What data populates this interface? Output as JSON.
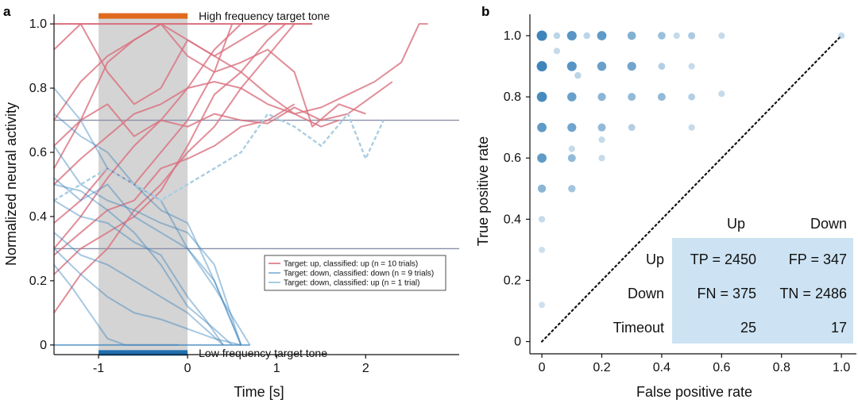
{
  "chart_data": [
    {
      "panel_label": "a",
      "type": "line",
      "xlabel": "Time [s]",
      "ylabel": "Normalized neural activity",
      "xlim": [
        -1.5,
        3.05
      ],
      "ylim": [
        -0.03,
        1.03
      ],
      "x_ticks": [
        -1,
        0,
        1,
        2
      ],
      "x_tick_labels": [
        "-1",
        "0",
        "1",
        "2"
      ],
      "y_ticks": [
        0,
        0.2,
        0.4,
        0.6,
        0.8,
        1.0
      ],
      "y_tick_labels": [
        "0",
        "0.2",
        "0.4",
        "0.6",
        "0.8",
        "1.0"
      ],
      "grid": false,
      "colors": {
        "up": "#d9707e",
        "down": "#3f86bd",
        "down_up": "#a9cde2",
        "shade": "#d4d4d4",
        "high_tone": "#e06a1e",
        "low_tone": "#1f6fb0",
        "threshold": "#8a8fa8"
      },
      "shaded_interval": [
        -1,
        0
      ],
      "thresholds": [
        0.7,
        0.3
      ],
      "tone_markers": [
        {
          "label": "High frequency target tone",
          "y": 1.0,
          "x": [
            -1,
            0
          ]
        },
        {
          "label": "Low frequency target tone",
          "y": 0.0,
          "x": [
            -1,
            0
          ]
        }
      ],
      "legend": {
        "placement": "center-right",
        "entries": [
          "Target: up, classified: up (n = 10 trials)",
          "Target: down, classified: down (n = 9 trials)",
          "Target: down, classified: up (n = 1 trial)"
        ]
      },
      "series": [
        {
          "group": "up",
          "x": [
            -1.5,
            -1.2,
            -0.9,
            -0.6,
            -0.3,
            0,
            0.3,
            0.6,
            0.9,
            1.2,
            1.4
          ],
          "y": [
            0.3,
            0.4,
            0.52,
            0.62,
            0.7,
            0.8,
            0.92,
            1.0,
            1.0,
            1.0,
            1.0
          ]
        },
        {
          "group": "up",
          "x": [
            -1.5,
            -1.2,
            -0.9,
            -0.6,
            -0.3,
            0,
            0.3,
            0.6,
            0.9,
            1.2,
            1.5,
            1.8,
            2.1,
            2.4,
            2.6,
            2.7
          ],
          "y": [
            0.5,
            0.58,
            0.65,
            0.72,
            0.75,
            0.8,
            0.82,
            0.8,
            0.75,
            0.72,
            0.74,
            0.78,
            0.82,
            0.88,
            1.0,
            1.0
          ]
        },
        {
          "group": "up",
          "x": [
            -1.5,
            -1.2,
            -0.9,
            -0.6,
            -0.3,
            0,
            0.3,
            0.6,
            0.9,
            1.1
          ],
          "y": [
            0.55,
            0.7,
            0.88,
            0.95,
            1.0,
            0.95,
            0.9,
            0.95,
            1.0,
            1.0
          ]
        },
        {
          "group": "up",
          "x": [
            -1.5,
            -1.2,
            -0.9,
            -0.6,
            -0.3,
            0,
            0.3,
            0.6,
            0.9,
            1.2,
            1.5,
            1.8,
            2.1,
            2.3
          ],
          "y": [
            0.62,
            0.7,
            0.75,
            0.65,
            0.7,
            0.68,
            0.72,
            0.7,
            0.69,
            0.74,
            0.7,
            0.72,
            0.78,
            0.82
          ]
        },
        {
          "group": "up",
          "x": [
            -1.5,
            -1.2,
            -0.9,
            -0.6,
            -0.3,
            0,
            0.3,
            0.6,
            0.9,
            1.2,
            1.4,
            1.7,
            2.0
          ],
          "y": [
            0.7,
            0.82,
            0.9,
            0.95,
            1.0,
            0.9,
            0.85,
            0.88,
            0.92,
            0.85,
            0.68,
            0.75,
            0.72
          ]
        },
        {
          "group": "up",
          "x": [
            -1.5,
            -1.2,
            -0.9,
            -0.6,
            -0.3,
            0,
            0.3,
            0.6,
            0.9,
            1.2
          ],
          "y": [
            0.1,
            0.22,
            0.3,
            0.42,
            0.5,
            0.6,
            0.68,
            0.8,
            0.9,
            1.0
          ]
        },
        {
          "group": "up",
          "x": [
            -1.5,
            -1.2,
            -0.9,
            -0.6,
            -0.3,
            0,
            0.3,
            0.6,
            0.9,
            1.1
          ],
          "y": [
            0.22,
            0.3,
            0.35,
            0.4,
            0.48,
            0.62,
            0.78,
            0.85,
            0.95,
            1.0
          ]
        },
        {
          "group": "up",
          "x": [
            -1.5,
            -1.2,
            -0.9,
            -0.6,
            -0.3,
            0,
            0.3,
            0.5
          ],
          "y": [
            0.38,
            0.45,
            0.55,
            0.5,
            0.6,
            0.7,
            0.85,
            1.0
          ]
        },
        {
          "group": "up",
          "x": [
            -1.5,
            -1.2,
            -0.9,
            -0.6,
            -0.3,
            0,
            0.3,
            0.6,
            0.9,
            1.2,
            1.5,
            1.7
          ],
          "y": [
            0.92,
            1.0,
            0.85,
            0.75,
            0.8,
            0.95,
            0.9,
            0.85,
            0.78,
            0.72,
            0.68,
            0.7
          ]
        },
        {
          "group": "up",
          "x": [
            -1.5,
            -1.2,
            -0.9,
            -0.6,
            -0.3,
            0,
            0.3,
            0.6,
            0.9,
            1.2
          ],
          "y": [
            0.28,
            0.35,
            0.42,
            0.45,
            0.55,
            0.58,
            0.62,
            0.68,
            0.7,
            0.75
          ]
        },
        {
          "group": "down",
          "x": [
            -1.5,
            -1.2,
            -0.9,
            -0.6,
            -0.3,
            0,
            0.3,
            0.5
          ],
          "y": [
            0.5,
            0.48,
            0.42,
            0.35,
            0.25,
            0.12,
            0.05,
            0.0
          ]
        },
        {
          "group": "down",
          "x": [
            -1.5,
            -1.2,
            -0.9,
            -0.6,
            -0.3,
            0,
            0.3,
            0.6
          ],
          "y": [
            0.8,
            0.7,
            0.55,
            0.5,
            0.45,
            0.3,
            0.2,
            0.0
          ]
        },
        {
          "group": "down",
          "x": [
            -1.5,
            -1.2,
            -0.9,
            -0.6,
            -0.3,
            0,
            0.2,
            0.4
          ],
          "y": [
            0.45,
            0.4,
            0.38,
            0.32,
            0.28,
            0.15,
            0.08,
            0.0
          ]
        },
        {
          "group": "down",
          "x": [
            -1.5,
            -1.2,
            -0.9,
            -0.6,
            -0.3,
            0,
            0.3,
            0.6
          ],
          "y": [
            0.3,
            0.22,
            0.15,
            0.1,
            0.08,
            0.05,
            0.02,
            0.0
          ]
        },
        {
          "group": "down",
          "x": [
            -1.5,
            -1.2,
            -0.9,
            -0.6,
            -0.3,
            0,
            0.3,
            0.7
          ],
          "y": [
            0.52,
            0.45,
            0.5,
            0.4,
            0.35,
            0.3,
            0.18,
            0.0
          ]
        },
        {
          "group": "down",
          "x": [
            -1.5,
            -1.2,
            -0.9,
            -0.6,
            -0.3,
            0,
            0.2,
            0.4
          ],
          "y": [
            0.35,
            0.28,
            0.25,
            0.2,
            0.15,
            0.1,
            0.05,
            0.0
          ]
        },
        {
          "group": "down",
          "x": [
            -1.5,
            -1.2,
            -0.9,
            -0.6,
            -0.3,
            0,
            0.3,
            0.6
          ],
          "y": [
            0.62,
            0.5,
            0.45,
            0.42,
            0.38,
            0.35,
            0.25,
            0.0
          ]
        },
        {
          "group": "down",
          "x": [
            -1.5,
            -1.3,
            -1.1,
            -0.9,
            -0.7,
            -0.5,
            -0.3,
            -0.1
          ],
          "y": [
            0.25,
            0.18,
            0.1,
            0.02,
            0.0,
            0.0,
            0.0,
            0.0
          ]
        },
        {
          "group": "down",
          "x": [
            -1.5,
            -1.2,
            -0.9,
            -0.6,
            -0.3,
            0,
            0.3,
            0.6
          ],
          "y": [
            0.72,
            0.65,
            0.6,
            0.5,
            0.42,
            0.38,
            0.2,
            0.0
          ]
        },
        {
          "group": "down_up",
          "x": [
            -1.5,
            -1.2,
            -0.9,
            -0.6,
            -0.3,
            0,
            0.3,
            0.6,
            0.9,
            1.2,
            1.5,
            1.8,
            2.0,
            2.2
          ],
          "y": [
            0.45,
            0.5,
            0.55,
            0.5,
            0.45,
            0.5,
            0.55,
            0.6,
            0.72,
            0.68,
            0.62,
            0.72,
            0.58,
            0.7
          ]
        }
      ]
    },
    {
      "panel_label": "b",
      "type": "scatter",
      "xlabel": "False positive rate",
      "ylabel": "True positive rate",
      "xlim": [
        -0.04,
        1.05
      ],
      "ylim": [
        -0.04,
        1.07
      ],
      "x_ticks": [
        0,
        0.2,
        0.4,
        0.6,
        0.8,
        1.0
      ],
      "x_tick_labels": [
        "0",
        "0.2",
        "0.4",
        "0.6",
        "0.8",
        "1.0"
      ],
      "y_ticks": [
        0,
        0.2,
        0.4,
        0.6,
        0.8,
        1.0
      ],
      "y_tick_labels": [
        "0",
        "0.2",
        "0.4",
        "0.6",
        "0.8",
        "1.0"
      ],
      "grid": false,
      "colors": {
        "points": "#2e7bb5",
        "diagonal": "#111111",
        "table_fill": "#cde3f3"
      },
      "diagonal": {
        "from": [
          0,
          0
        ],
        "to": [
          1,
          1
        ],
        "style": "dotted"
      },
      "points": [
        {
          "x": 0,
          "y": 1.0,
          "w": 1.0
        },
        {
          "x": 0.1,
          "y": 1.0,
          "w": 0.85
        },
        {
          "x": 0.2,
          "y": 1.0,
          "w": 0.8
        },
        {
          "x": 0.3,
          "y": 1.0,
          "w": 0.6
        },
        {
          "x": 0.4,
          "y": 1.0,
          "w": 0.45
        },
        {
          "x": 0.5,
          "y": 1.0,
          "w": 0.35
        },
        {
          "x": 0.6,
          "y": 1.0,
          "w": 0.2
        },
        {
          "x": 1.0,
          "y": 1.0,
          "w": 0.2
        },
        {
          "x": 0.05,
          "y": 1.0,
          "w": 0.25
        },
        {
          "x": 0.15,
          "y": 1.0,
          "w": 0.25
        },
        {
          "x": 0.45,
          "y": 1.0,
          "w": 0.2
        },
        {
          "x": 0,
          "y": 0.9,
          "w": 1.0
        },
        {
          "x": 0.1,
          "y": 0.9,
          "w": 0.85
        },
        {
          "x": 0.2,
          "y": 0.9,
          "w": 0.75
        },
        {
          "x": 0.3,
          "y": 0.9,
          "w": 0.7
        },
        {
          "x": 0.4,
          "y": 0.9,
          "w": 0.3
        },
        {
          "x": 0.5,
          "y": 0.9,
          "w": 0.2
        },
        {
          "x": 0.12,
          "y": 0.87,
          "w": 0.25
        },
        {
          "x": 0.05,
          "y": 0.95,
          "w": 0.2
        },
        {
          "x": 0,
          "y": 0.8,
          "w": 0.95
        },
        {
          "x": 0.1,
          "y": 0.8,
          "w": 0.75
        },
        {
          "x": 0.2,
          "y": 0.8,
          "w": 0.55
        },
        {
          "x": 0.3,
          "y": 0.8,
          "w": 0.5
        },
        {
          "x": 0.4,
          "y": 0.8,
          "w": 0.5
        },
        {
          "x": 0.5,
          "y": 0.8,
          "w": 0.3
        },
        {
          "x": 0.6,
          "y": 0.81,
          "w": 0.2
        },
        {
          "x": 0,
          "y": 0.7,
          "w": 0.8
        },
        {
          "x": 0.1,
          "y": 0.7,
          "w": 0.7
        },
        {
          "x": 0.2,
          "y": 0.7,
          "w": 0.5
        },
        {
          "x": 0.3,
          "y": 0.7,
          "w": 0.3
        },
        {
          "x": 0.5,
          "y": 0.7,
          "w": 0.2
        },
        {
          "x": 0.2,
          "y": 0.66,
          "w": 0.2
        },
        {
          "x": 0,
          "y": 0.6,
          "w": 0.8
        },
        {
          "x": 0.1,
          "y": 0.6,
          "w": 0.5
        },
        {
          "x": 0.2,
          "y": 0.6,
          "w": 0.2
        },
        {
          "x": 0.1,
          "y": 0.63,
          "w": 0.2
        },
        {
          "x": 0,
          "y": 0.5,
          "w": 0.55
        },
        {
          "x": 0.1,
          "y": 0.5,
          "w": 0.4
        },
        {
          "x": 0,
          "y": 0.4,
          "w": 0.2
        },
        {
          "x": 0,
          "y": 0.3,
          "w": 0.15
        },
        {
          "x": 0,
          "y": 0.12,
          "w": 0.15
        }
      ],
      "table": {
        "col_headers": [
          "Up",
          "Down"
        ],
        "rows": [
          {
            "label": "Up",
            "cells": [
              "TP = 2450",
              "FP = 347"
            ]
          },
          {
            "label": "Down",
            "cells": [
              "FN = 375",
              "TN = 2486"
            ]
          },
          {
            "label": "Timeout",
            "cells": [
              "25",
              "17"
            ]
          }
        ]
      }
    }
  ]
}
